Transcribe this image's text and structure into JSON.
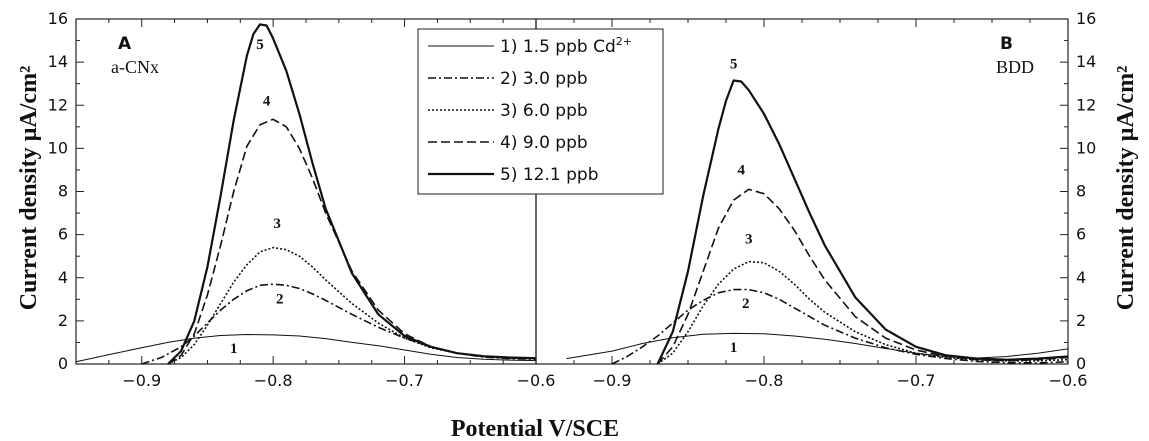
{
  "chart_data": {
    "type": "line",
    "ylabel_left": "Current density µA/cm²",
    "ylabel_right": "Current density µA/cm²",
    "xlabel": "Potential V/SCE",
    "ylim": [
      0,
      16
    ],
    "yticks": [
      "0",
      "2",
      "4",
      "6",
      "8",
      "10",
      "12",
      "14",
      "16"
    ],
    "legend": {
      "placement": "top-center",
      "entries": [
        {
          "text": "1) 1.5 ppb Cd",
          "sup": "2+",
          "style": "solid-thin"
        },
        {
          "text": "2) 3.0 ppb",
          "style": "dash-dot"
        },
        {
          "text": "3) 6.0 ppb",
          "style": "dotted"
        },
        {
          "text": "4) 9.0 ppb",
          "style": "dashed"
        },
        {
          "text": "5) 12.1 ppb",
          "style": "solid-thick"
        }
      ]
    },
    "panels": [
      {
        "letter": "A",
        "material": "a-CNx",
        "xlim": [
          -0.95,
          -0.6
        ],
        "xticks": [
          -0.9,
          -0.8,
          -0.7,
          -0.6
        ],
        "xtick_labels": [
          "-0.9",
          "-0.8",
          "-0.7",
          "-0.6"
        ],
        "series": [
          {
            "label": "1",
            "style": "solid-thin",
            "label_at": [
              -0.83,
              0.5
            ],
            "x": [
              -0.95,
              -0.92,
              -0.9,
              -0.88,
              -0.86,
              -0.84,
              -0.82,
              -0.8,
              -0.78,
              -0.76,
              -0.74,
              -0.72,
              -0.7,
              -0.68,
              -0.66,
              -0.64,
              -0.62,
              -0.6
            ],
            "y": [
              0.1,
              0.5,
              0.75,
              1.0,
              1.2,
              1.32,
              1.37,
              1.35,
              1.3,
              1.18,
              1.0,
              0.85,
              0.65,
              0.45,
              0.3,
              0.22,
              0.18,
              0.16
            ]
          },
          {
            "label": "2",
            "style": "dash-dot",
            "label_at": [
              -0.795,
              2.8
            ],
            "x": [
              -0.9,
              -0.885,
              -0.87,
              -0.86,
              -0.85,
              -0.84,
              -0.83,
              -0.82,
              -0.81,
              -0.8,
              -0.79,
              -0.78,
              -0.77,
              -0.76,
              -0.74,
              -0.72,
              -0.7,
              -0.68,
              -0.66,
              -0.64,
              -0.62,
              -0.6
            ],
            "y": [
              0.0,
              0.3,
              0.8,
              1.3,
              1.9,
              2.5,
              3.0,
              3.4,
              3.65,
              3.7,
              3.65,
              3.5,
              3.25,
              2.95,
              2.3,
              1.7,
              1.2,
              0.8,
              0.5,
              0.32,
              0.25,
              0.22
            ]
          },
          {
            "label": "3",
            "style": "dotted",
            "label_at": [
              -0.797,
              6.3
            ],
            "x": [
              -0.88,
              -0.87,
              -0.86,
              -0.85,
              -0.84,
              -0.83,
              -0.82,
              -0.81,
              -0.8,
              -0.79,
              -0.78,
              -0.77,
              -0.76,
              -0.74,
              -0.72,
              -0.7,
              -0.68,
              -0.66,
              -0.64,
              -0.62,
              -0.6
            ],
            "y": [
              0.0,
              0.3,
              0.9,
              1.8,
              2.8,
              3.8,
              4.6,
              5.2,
              5.4,
              5.3,
              5.0,
              4.5,
              3.9,
              2.8,
              1.9,
              1.2,
              0.75,
              0.5,
              0.35,
              0.28,
              0.25
            ]
          },
          {
            "label": "4",
            "style": "dashed",
            "label_at": [
              -0.805,
              12.0
            ],
            "x": [
              -0.88,
              -0.87,
              -0.86,
              -0.85,
              -0.84,
              -0.83,
              -0.82,
              -0.81,
              -0.8,
              -0.79,
              -0.78,
              -0.77,
              -0.76,
              -0.74,
              -0.72,
              -0.7,
              -0.68,
              -0.66,
              -0.64,
              -0.62,
              -0.6
            ],
            "y": [
              0.0,
              0.4,
              1.4,
              3.2,
              5.5,
              8.0,
              10.1,
              11.1,
              11.35,
              11.0,
              10.0,
              8.6,
              7.0,
              4.3,
              2.5,
              1.4,
              0.8,
              0.5,
              0.35,
              0.28,
              0.25
            ]
          },
          {
            "label": "5",
            "style": "solid-thick",
            "label_at": [
              -0.81,
              14.6
            ],
            "x": [
              -0.88,
              -0.87,
              -0.86,
              -0.85,
              -0.84,
              -0.83,
              -0.82,
              -0.815,
              -0.81,
              -0.805,
              -0.8,
              -0.79,
              -0.78,
              -0.77,
              -0.76,
              -0.74,
              -0.72,
              -0.7,
              -0.68,
              -0.66,
              -0.64,
              -0.62,
              -0.6
            ],
            "y": [
              0.0,
              0.6,
              2.0,
              4.5,
              7.8,
              11.3,
              14.3,
              15.3,
              15.75,
              15.7,
              15.1,
              13.6,
              11.6,
              9.3,
              7.2,
              4.2,
              2.3,
              1.3,
              0.8,
              0.5,
              0.36,
              0.3,
              0.27
            ]
          }
        ]
      },
      {
        "letter": "B",
        "material": "BDD",
        "xlim": [
          -0.95,
          -0.6
        ],
        "xticks": [
          -0.9,
          -0.8,
          -0.7,
          -0.6
        ],
        "xtick_labels": [
          "-0.9",
          "-0.8",
          "-0.7",
          "-0.6"
        ],
        "series": [
          {
            "label": "1",
            "style": "solid-thin",
            "label_at": [
              -0.82,
              0.55
            ],
            "x": [
              -0.93,
              -0.9,
              -0.88,
              -0.86,
              -0.84,
              -0.82,
              -0.8,
              -0.78,
              -0.76,
              -0.74,
              -0.72,
              -0.7,
              -0.68,
              -0.66,
              -0.64,
              -0.62,
              -0.6
            ],
            "y": [
              0.25,
              0.6,
              0.95,
              1.22,
              1.38,
              1.42,
              1.4,
              1.3,
              1.15,
              0.95,
              0.72,
              0.5,
              0.35,
              0.28,
              0.35,
              0.5,
              0.7
            ]
          },
          {
            "label": "2",
            "style": "dash-dot",
            "label_at": [
              -0.812,
              2.6
            ],
            "x": [
              -0.9,
              -0.89,
              -0.88,
              -0.87,
              -0.86,
              -0.85,
              -0.84,
              -0.83,
              -0.82,
              -0.81,
              -0.8,
              -0.79,
              -0.78,
              -0.77,
              -0.76,
              -0.74,
              -0.72,
              -0.7,
              -0.68,
              -0.66,
              -0.64,
              -0.62,
              -0.6
            ],
            "y": [
              0.0,
              0.35,
              0.8,
              1.3,
              1.9,
              2.5,
              2.95,
              3.3,
              3.45,
              3.45,
              3.3,
              3.0,
              2.6,
              2.2,
              1.8,
              1.2,
              0.75,
              0.45,
              0.25,
              0.12,
              0.06,
              0.05,
              0.1
            ]
          },
          {
            "label": "3",
            "style": "dotted",
            "label_at": [
              -0.81,
              5.6
            ],
            "x": [
              -0.87,
              -0.86,
              -0.85,
              -0.84,
              -0.83,
              -0.82,
              -0.81,
              -0.8,
              -0.79,
              -0.78,
              -0.77,
              -0.76,
              -0.74,
              -0.72,
              -0.7,
              -0.68,
              -0.66,
              -0.64,
              -0.62,
              -0.6
            ],
            "y": [
              0.0,
              0.5,
              1.5,
              2.7,
              3.7,
              4.4,
              4.75,
              4.7,
              4.3,
              3.7,
              3.0,
              2.4,
              1.5,
              0.9,
              0.5,
              0.3,
              0.2,
              0.15,
              0.15,
              0.2
            ]
          },
          {
            "label": "4",
            "style": "dashed",
            "label_at": [
              -0.815,
              8.8
            ],
            "x": [
              -0.87,
              -0.86,
              -0.85,
              -0.84,
              -0.83,
              -0.82,
              -0.81,
              -0.8,
              -0.79,
              -0.78,
              -0.77,
              -0.76,
              -0.74,
              -0.72,
              -0.7,
              -0.68,
              -0.66,
              -0.64,
              -0.62,
              -0.6
            ],
            "y": [
              0.0,
              0.8,
              2.3,
              4.3,
              6.3,
              7.6,
              8.1,
              7.9,
              7.2,
              6.2,
              5.0,
              3.9,
              2.2,
              1.2,
              0.65,
              0.35,
              0.2,
              0.15,
              0.2,
              0.3
            ]
          },
          {
            "label": "5",
            "style": "solid-thick",
            "label_at": [
              -0.82,
              13.7
            ],
            "x": [
              -0.87,
              -0.86,
              -0.85,
              -0.84,
              -0.83,
              -0.825,
              -0.82,
              -0.815,
              -0.81,
              -0.8,
              -0.79,
              -0.78,
              -0.77,
              -0.76,
              -0.74,
              -0.72,
              -0.7,
              -0.68,
              -0.66,
              -0.64,
              -0.62,
              -0.6
            ],
            "y": [
              0.0,
              1.5,
              4.3,
              7.8,
              10.9,
              12.2,
              13.15,
              13.1,
              12.7,
              11.6,
              10.2,
              8.6,
              7.0,
              5.5,
              3.1,
              1.6,
              0.8,
              0.4,
              0.25,
              0.2,
              0.25,
              0.35
            ]
          }
        ]
      }
    ]
  }
}
